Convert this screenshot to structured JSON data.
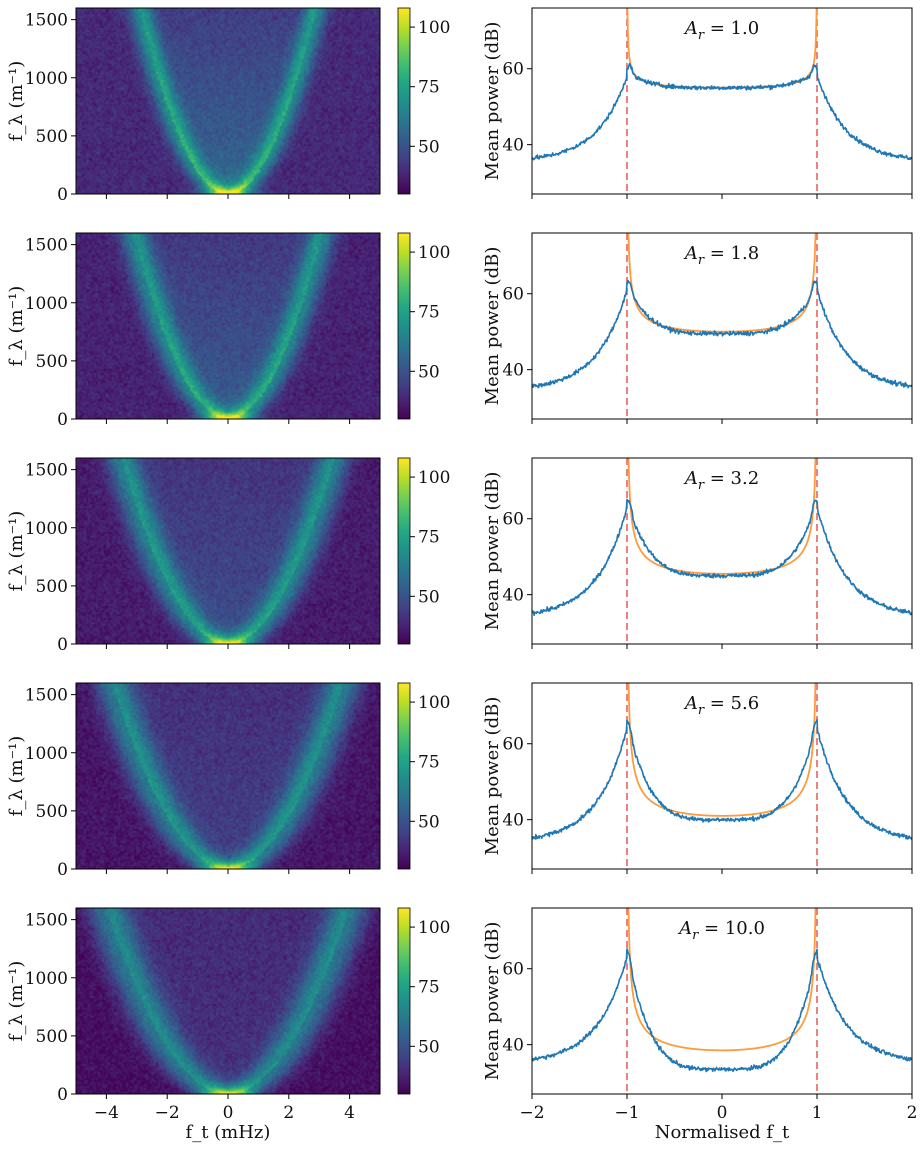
{
  "colors": {
    "data_line": "#1f77b4",
    "model_line": "#ff9a3c",
    "boundary": "#e8625e",
    "axis": "#000000",
    "colormap": [
      "#440154",
      "#3b528b",
      "#21918c",
      "#5ec962",
      "#fde725"
    ]
  },
  "chart_data": [
    {
      "type": "heatmap",
      "panel": "left",
      "rows": 5,
      "ylabel": "f_λ (m⁻¹)",
      "xlabel": "f_t (mHz)",
      "xlim": [
        -5,
        5
      ],
      "ylim": [
        0,
        1600
      ],
      "x_ticks": [
        "−4",
        "−2",
        "0",
        "2",
        "4"
      ],
      "x_tick_values": [
        -4,
        -2,
        0,
        2,
        4
      ],
      "y_ticks": [
        "0",
        "500",
        "1000",
        "1500"
      ],
      "y_tick_values": [
        0,
        500,
        1000,
        1500
      ],
      "parabola_peak_ft_at_1600": [
        2.9,
        3.1,
        3.5,
        3.8,
        4.0
      ],
      "colorbar": {
        "vmin": 30,
        "vmax": 108,
        "ticks": [
          "50",
          "75",
          "100"
        ],
        "tick_values": [
          50,
          75,
          100
        ]
      }
    },
    {
      "type": "line",
      "panel": "right",
      "ylabel": "Mean power (dB)",
      "xlabel": "Normalised f_t",
      "xlim": [
        -2,
        2
      ],
      "ylim": [
        27,
        76
      ],
      "x_ticks": [
        "−2",
        "−1",
        "0",
        "1",
        "2"
      ],
      "x_tick_values": [
        -2,
        -1,
        0,
        1,
        2
      ],
      "y_ticks": [
        "40",
        "60"
      ],
      "y_tick_values": [
        40,
        60
      ],
      "vertical_dashed_lines_at": [
        -1,
        1
      ],
      "series": [
        {
          "name": "A_r = 1.0",
          "label": "= 1.0",
          "edge": 35.5,
          "mid": 50,
          "peak": 61,
          "center": 55,
          "model_center": 55,
          "model_at_0p95": 60.0
        },
        {
          "name": "A_r = 1.8",
          "label": "= 1.8",
          "edge": 34.5,
          "mid": 50,
          "peak": 64,
          "center": 49.5,
          "model_center": 50,
          "model_at_0p95": 62.0
        },
        {
          "name": "A_r = 3.2",
          "label": "= 3.2",
          "edge": 34,
          "mid": 51,
          "peak": 66,
          "center": 45,
          "model_center": 45.5,
          "model_at_0p95": 60.0
        },
        {
          "name": "A_r = 5.6",
          "label": "= 5.6",
          "edge": 34,
          "mid": 51,
          "peak": 67,
          "center": 40,
          "model_center": 41,
          "model_at_0p95": 58.0
        },
        {
          "name": "A_r = 10.0",
          "label": "= 10.0",
          "edge": 35,
          "mid": 51,
          "peak": 66,
          "center": 33.5,
          "model_center": 38.5,
          "model_at_0p95": 56.0
        }
      ]
    }
  ]
}
